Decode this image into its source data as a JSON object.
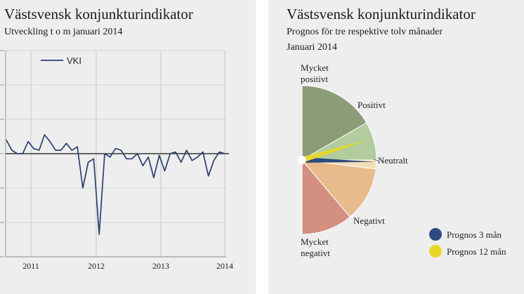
{
  "chart_data": [
    {
      "type": "line",
      "title": "Västsvensk konjunkturindikator",
      "subtitle": "Utveckling t o m januari 2014",
      "legend": [
        "VKI"
      ],
      "xlabel": "",
      "ylabel": "",
      "x_ticks": [
        "2011",
        "2012",
        "2013",
        "2014"
      ],
      "ylim": [
        -3,
        3
      ],
      "reference_line": 0,
      "series": [
        {
          "name": "VKI",
          "values": [
            0.4,
            0.1,
            0.0,
            0.0,
            0.35,
            0.15,
            0.1,
            0.55,
            0.35,
            0.1,
            0.1,
            0.3,
            0.1,
            0.2,
            -1.0,
            -0.25,
            -0.15,
            -2.35,
            0.0,
            -0.1,
            0.15,
            0.1,
            -0.15,
            -0.15,
            0.0,
            -0.35,
            -0.1,
            -0.7,
            -0.05,
            -0.5,
            0.0,
            0.05,
            -0.25,
            0.1,
            -0.2,
            -0.1,
            0.05,
            -0.65,
            -0.2,
            0.05,
            0.0
          ]
        }
      ]
    },
    {
      "type": "pie",
      "title": "Västsvensk konjunkturindikator",
      "subtitle_lines": [
        "Prognos för tre respektive tolv månader",
        "Januari 2014"
      ],
      "slices": [
        {
          "label": "Mycket\npositivt",
          "label_lines": [
            "Mycket",
            "positivt"
          ],
          "start_deg": 90,
          "end_deg": 30,
          "color": "#8b9d78"
        },
        {
          "label": "Positivt",
          "label_lines": [
            "Positivt"
          ],
          "start_deg": 30,
          "end_deg": 0,
          "color": "#b2cc9d"
        },
        {
          "label": "Neutralt",
          "label_lines": [
            "Neutralt"
          ],
          "start_deg": 0,
          "end_deg": -7,
          "color": "#f0dfb4"
        },
        {
          "label": "Negativt",
          "label_lines": [
            "Negativt"
          ],
          "start_deg": -7,
          "end_deg": -50,
          "color": "#e8bb8c"
        },
        {
          "label": "Mycket\nnegativt",
          "label_lines": [
            "Mycket",
            "negativt"
          ],
          "start_deg": -50,
          "end_deg": -90,
          "color": "#d38f80"
        }
      ],
      "needles": [
        {
          "name": "Prognos 3 mån",
          "angle_deg": -1.5,
          "color": "#2d4b7e"
        },
        {
          "name": "Prognos 12 mån",
          "angle_deg": 17,
          "color": "#e8d72a"
        }
      ],
      "legend": [
        "Prognos 3 mån",
        "Prognos 12 mån"
      ]
    }
  ]
}
